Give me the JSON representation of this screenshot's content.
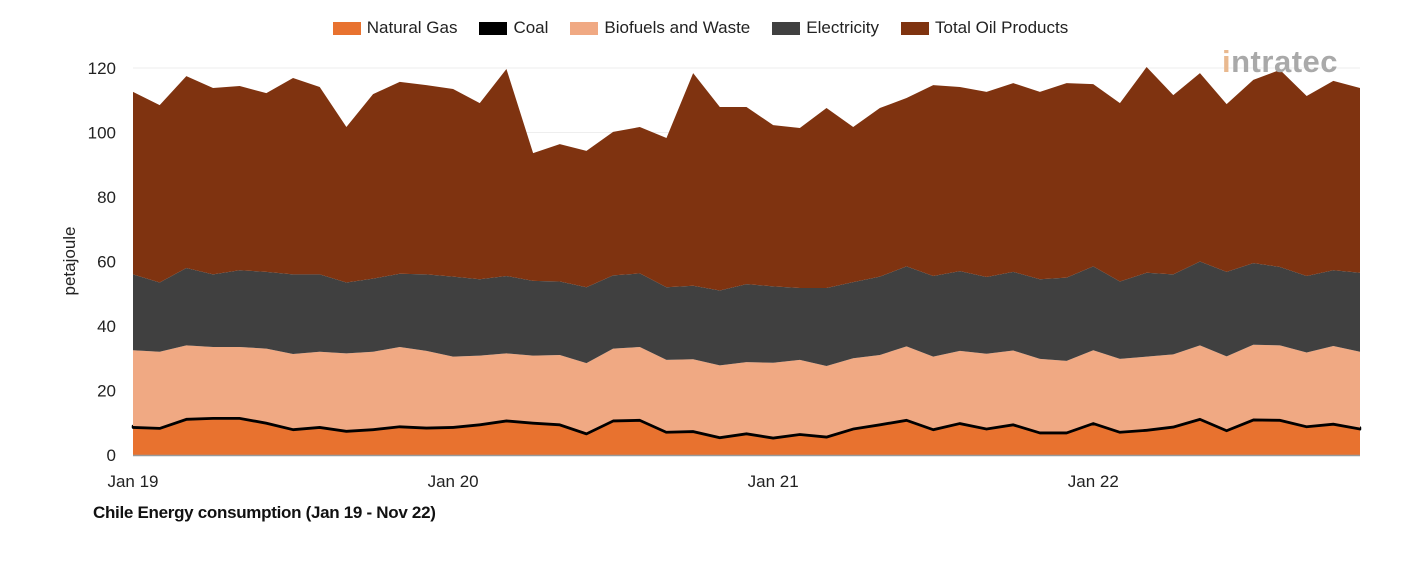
{
  "chart_data": {
    "type": "area",
    "stacked": true,
    "title": "Chile Energy consumption (Jan 19 - Nov 22)",
    "xlabel": "",
    "ylabel": "petajoule",
    "ylim": [
      0,
      120
    ],
    "yticks": [
      0,
      20,
      40,
      60,
      80,
      100,
      120
    ],
    "xtick_labels": [
      "Jan 19",
      "Jan 20",
      "Jan 21",
      "Jan 22"
    ],
    "xtick_months": [
      "2019-01",
      "2020-01",
      "2021-01",
      "2022-01"
    ],
    "grid": "horizontal",
    "legend_position": "top",
    "x": [
      "2019-01",
      "2019-02",
      "2019-03",
      "2019-04",
      "2019-05",
      "2019-06",
      "2019-07",
      "2019-08",
      "2019-09",
      "2019-10",
      "2019-11",
      "2019-12",
      "2020-01",
      "2020-02",
      "2020-03",
      "2020-04",
      "2020-05",
      "2020-06",
      "2020-07",
      "2020-08",
      "2020-09",
      "2020-10",
      "2020-11",
      "2020-12",
      "2021-01",
      "2021-02",
      "2021-03",
      "2021-04",
      "2021-05",
      "2021-06",
      "2021-07",
      "2021-08",
      "2021-09",
      "2021-10",
      "2021-11",
      "2021-12",
      "2022-01",
      "2022-02",
      "2022-03",
      "2022-04",
      "2022-05",
      "2022-06",
      "2022-07",
      "2022-08",
      "2022-09",
      "2022-10",
      "2022-11"
    ],
    "series": [
      {
        "name": "Natural Gas",
        "color": "#E8722F",
        "values": [
          8.5,
          8.2,
          11,
          11.3,
          11.3,
          9.8,
          7.8,
          8.5,
          7.3,
          7.8,
          8.7,
          8.3,
          8.5,
          9.3,
          10.5,
          9.8,
          9.3,
          6.5,
          10.5,
          10.7,
          7,
          7.2,
          5.3,
          6.5,
          5.2,
          6.3,
          5.5,
          8,
          9.3,
          10.7,
          7.8,
          9.7,
          8,
          9.3,
          6.8,
          6.8,
          9.7,
          7,
          7.6,
          8.6,
          11,
          7.5,
          10.8,
          10.7,
          8.7,
          9.5,
          8
        ]
      },
      {
        "name": "Coal",
        "color": "#000000",
        "values": [
          0.5,
          0.5,
          0.5,
          0.5,
          0.5,
          0.5,
          0.5,
          0.5,
          0.5,
          0.5,
          0.5,
          0.5,
          0.5,
          0.5,
          0.5,
          0.5,
          0.5,
          0.5,
          0.5,
          0.5,
          0.5,
          0.5,
          0.5,
          0.5,
          0.5,
          0.5,
          0.5,
          0.5,
          0.5,
          0.5,
          0.5,
          0.5,
          0.5,
          0.5,
          0.5,
          0.5,
          0.5,
          0.5,
          0.5,
          0.5,
          0.5,
          0.5,
          0.5,
          0.5,
          0.5,
          0.5,
          0.5
        ]
      },
      {
        "name": "Biofuels and Waste",
        "color": "#F0A983",
        "values": [
          23.5,
          23.3,
          22.5,
          21.7,
          21.7,
          22.7,
          23,
          23,
          23.7,
          23.7,
          24.3,
          23.5,
          21.5,
          21,
          20.5,
          20.5,
          21.2,
          21.5,
          22,
          22.3,
          22,
          22,
          22,
          21.8,
          22.9,
          22.7,
          21.6,
          21.5,
          21.2,
          22.5,
          22.2,
          22.1,
          22.9,
          22.6,
          22.5,
          21.9,
          22.3,
          22.3,
          22.4,
          22.1,
          22.5,
          22.6,
          22.9,
          22.8,
          22.6,
          23.8,
          23.5
        ]
      },
      {
        "name": "Electricity",
        "color": "#404040",
        "values": [
          23.5,
          21.5,
          24,
          22.5,
          23.8,
          23.8,
          24.7,
          24,
          22,
          22.7,
          22.7,
          23.7,
          24.8,
          23.7,
          24,
          23.2,
          22.8,
          23.5,
          22.7,
          22.8,
          22.5,
          22.8,
          23.2,
          24.2,
          23.7,
          22.3,
          24.2,
          23.6,
          24.3,
          24.8,
          25,
          24.7,
          23.8,
          24.4,
          24.7,
          25.8,
          26,
          24,
          26,
          24.8,
          26,
          26.2,
          25.3,
          24.3,
          23.7,
          23.5,
          24.5
        ]
      },
      {
        "name": "Total Oil Products",
        "color": "#7F3310",
        "values": [
          56.6,
          55,
          59.5,
          57.8,
          57.1,
          55.4,
          60.9,
          58.1,
          48.2,
          57.2,
          59.5,
          58.7,
          58.2,
          54.6,
          64.2,
          39.6,
          42.6,
          42.3,
          44.5,
          45.4,
          46.3,
          65.9,
          56.9,
          54.9,
          50,
          49.6,
          55.8,
          48.1,
          52.3,
          52.2,
          59.2,
          57.1,
          57.4,
          58.5,
          58.1,
          60.3,
          56.5,
          55.3,
          63.8,
          55.6,
          58.4,
          52,
          56.8,
          61.1,
          55.8,
          58.7,
          57.3
        ]
      }
    ]
  },
  "logo": {
    "text": "intratec"
  }
}
